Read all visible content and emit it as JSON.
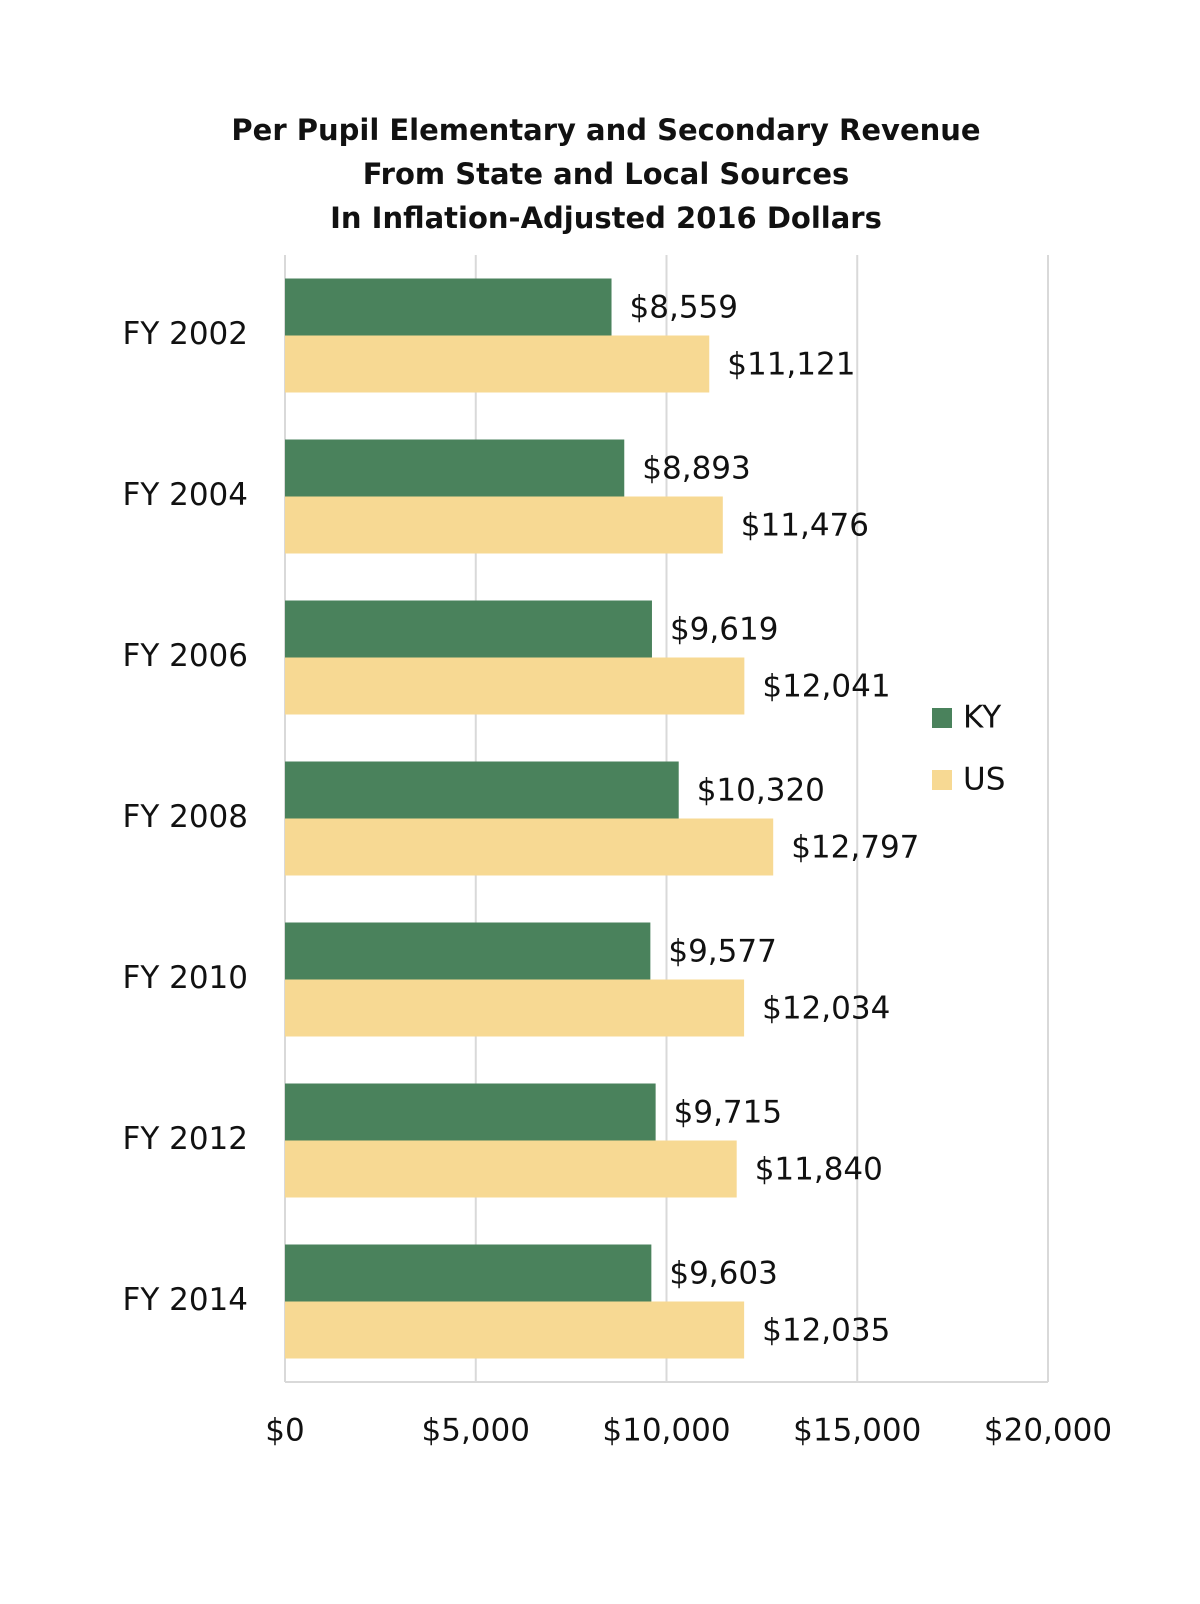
{
  "chart_data": {
    "type": "bar",
    "orientation": "horizontal",
    "title": [
      "Per Pupil Elementary and Secondary Revenue",
      "From State and Local Sources",
      "In Inflation-Adjusted 2016 Dollars"
    ],
    "categories": [
      "FY 2002",
      "FY 2004",
      "FY 2006",
      "FY 2008",
      "FY 2010",
      "FY 2012",
      "FY 2014"
    ],
    "series": [
      {
        "name": "KY",
        "color": "#4a825c",
        "values": [
          8559,
          8893,
          9619,
          10320,
          9577,
          9715,
          9603
        ],
        "value_labels": [
          "$8,559",
          "$8,893",
          "$9,619",
          "$10,320",
          "$9,577",
          "$9,715",
          "$9,603"
        ]
      },
      {
        "name": "US",
        "color": "#f7d993",
        "values": [
          11121,
          11476,
          12041,
          12797,
          12034,
          11840,
          12035
        ],
        "value_labels": [
          "$11,121",
          "$11,476",
          "$12,041",
          "$12,797",
          "$12,034",
          "$11,840",
          "$12,035"
        ]
      }
    ],
    "xlim": [
      0,
      20000
    ],
    "xticks": [
      {
        "value": 0,
        "label": "$0"
      },
      {
        "value": 5000,
        "label": "$5,000"
      },
      {
        "value": 10000,
        "label": "$10,000"
      },
      {
        "value": 15000,
        "label": "$15,000"
      },
      {
        "value": 20000,
        "label": "$20,000"
      }
    ],
    "grid": true,
    "legend": "right"
  }
}
